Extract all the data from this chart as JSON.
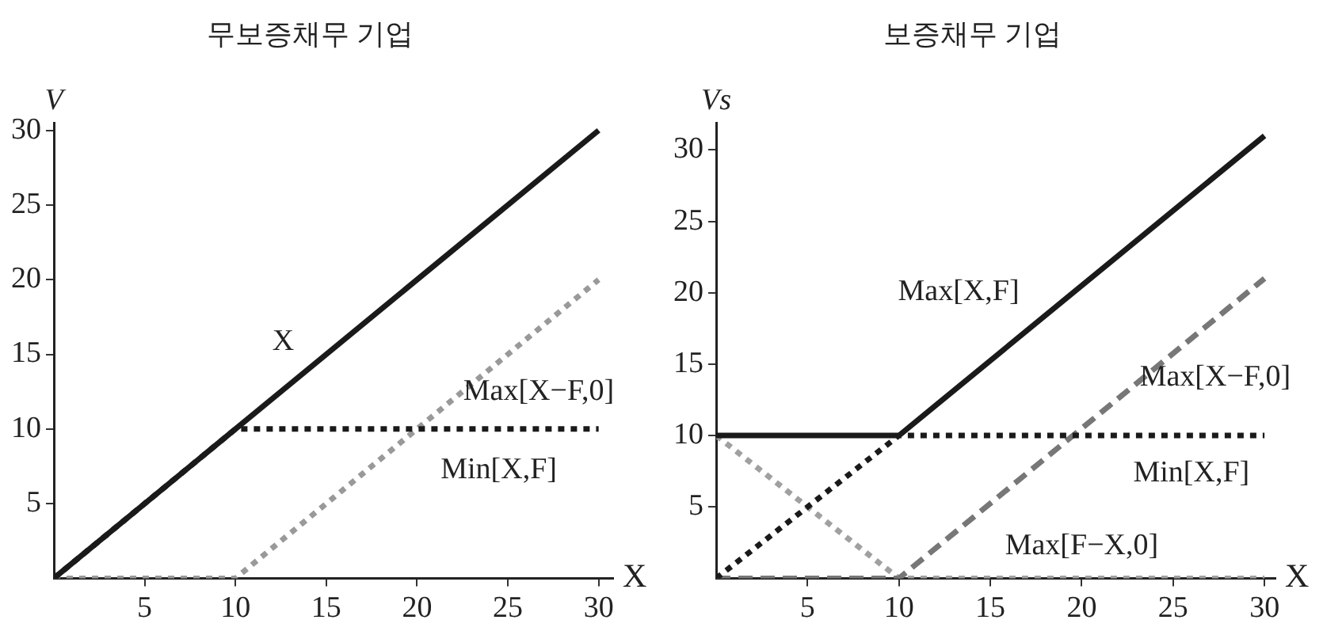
{
  "chart_data": [
    {
      "type": "line",
      "title": "무보증채무 기업",
      "xlabel": "X",
      "ylabel": "V",
      "xlim": [
        0,
        30.8
      ],
      "ylim": [
        0,
        30.5
      ],
      "xticks": [
        5,
        10,
        15,
        20,
        25,
        30
      ],
      "yticks": [
        5,
        10,
        15,
        20,
        25,
        30
      ],
      "grid": false,
      "legend": false,
      "marker": "none",
      "series": [
        {
          "name": "X",
          "x": [
            0,
            30
          ],
          "values": [
            0,
            30
          ],
          "color": "#1a1a1a",
          "line_style": "solid"
        },
        {
          "name": "Min[X,F]",
          "x": [
            0,
            10,
            30
          ],
          "values": [
            0,
            10,
            10
          ],
          "color": "#1a1a1a",
          "line_style": "dotted"
        },
        {
          "name": "Max[X−F,0]",
          "x": [
            0,
            10,
            30
          ],
          "values": [
            0,
            0,
            20
          ],
          "color": "#999999",
          "line_style": "dotted"
        }
      ]
    },
    {
      "type": "line",
      "title": "보증채무 기업",
      "xlabel": "X",
      "ylabel": "Vs",
      "xlim": [
        0,
        30.6
      ],
      "ylim": [
        0,
        31.9
      ],
      "xticks": [
        5,
        10,
        15,
        20,
        25,
        30
      ],
      "yticks": [
        5,
        10,
        15,
        20,
        25,
        30
      ],
      "grid": false,
      "legend": false,
      "marker": "none",
      "series": [
        {
          "name": "Max[X,F]",
          "x": [
            0,
            10,
            30
          ],
          "values": [
            10,
            10,
            31
          ],
          "color": "#1a1a1a",
          "line_style": "solid"
        },
        {
          "name": "Min[X,F]",
          "x": [
            0,
            10,
            30
          ],
          "values": [
            0,
            10,
            10
          ],
          "color": "#1a1a1a",
          "line_style": "dotted"
        },
        {
          "name": "Max[X−F,0]",
          "x": [
            0,
            10,
            30
          ],
          "values": [
            0,
            0,
            21
          ],
          "color": "#777777",
          "line_style": "dashed"
        },
        {
          "name": "Max[F−X,0]",
          "x": [
            0,
            10,
            30
          ],
          "values": [
            10,
            0,
            0
          ],
          "color": "#a0a0a0",
          "line_style": "dotted"
        }
      ]
    }
  ]
}
